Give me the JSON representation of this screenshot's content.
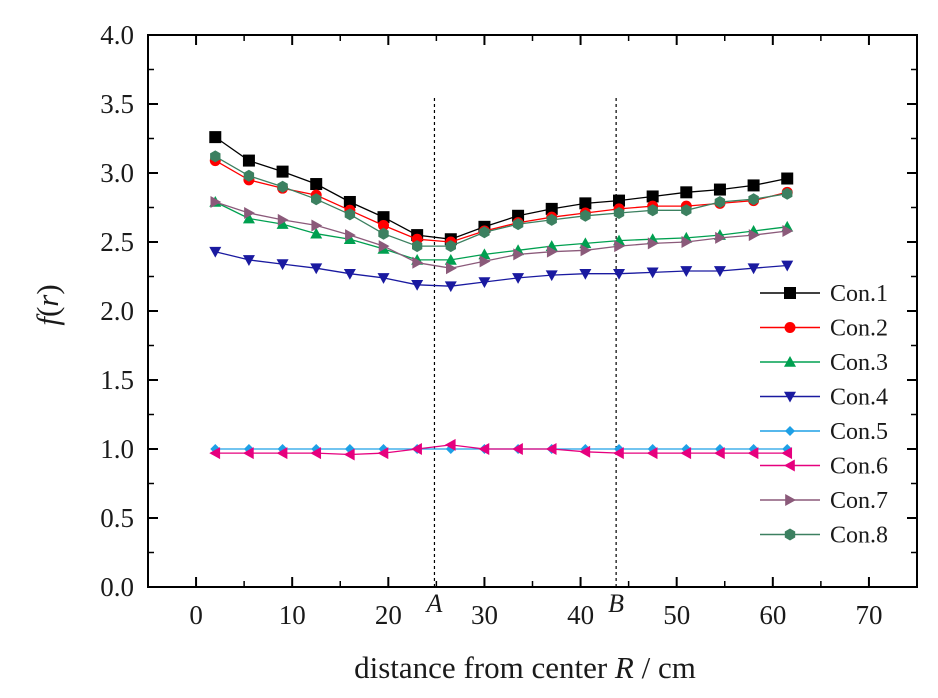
{
  "chart_data": {
    "type": "line",
    "xlabel_prefix": "distance from center ",
    "xlabel_var": "R",
    "xlabel_suffix": " / cm",
    "ylabel_var_f": "f",
    "ylabel_open": "(",
    "ylabel_var_r": "r",
    "ylabel_close": ")",
    "xlim": [
      -5,
      75
    ],
    "ylim": [
      0,
      4
    ],
    "xticks": [
      0,
      10,
      20,
      30,
      40,
      50,
      60,
      70
    ],
    "yticks": [
      0.0,
      0.5,
      1.0,
      1.5,
      2.0,
      2.5,
      3.0,
      3.5,
      4.0
    ],
    "xtick_labels": [
      "0",
      "10",
      "20",
      "30",
      "40",
      "50",
      "60",
      "70"
    ],
    "ytick_labels": [
      "0.0",
      "0.5",
      "1.0",
      "1.5",
      "2.0",
      "2.5",
      "3.0",
      "3.5",
      "4.0"
    ],
    "x": [
      2,
      5.5,
      9,
      12.5,
      16,
      19.5,
      23,
      26.5,
      30,
      33.5,
      37,
      40.5,
      44,
      47.5,
      51,
      54.5,
      58,
      61.5
    ],
    "vlines": [
      {
        "x": 24.8,
        "label": "A"
      },
      {
        "x": 43.7,
        "label": "B"
      }
    ],
    "legend_position": "right",
    "series": [
      {
        "name": "Con.1",
        "color": "#000000",
        "marker": "square",
        "values": [
          3.26,
          3.09,
          3.01,
          2.92,
          2.79,
          2.68,
          2.55,
          2.52,
          2.61,
          2.69,
          2.74,
          2.78,
          2.8,
          2.83,
          2.86,
          2.88,
          2.91,
          2.96
        ]
      },
      {
        "name": "Con.2",
        "color": "#ff0000",
        "marker": "circle",
        "values": [
          3.09,
          2.95,
          2.89,
          2.84,
          2.73,
          2.62,
          2.52,
          2.5,
          2.58,
          2.64,
          2.68,
          2.71,
          2.74,
          2.76,
          2.76,
          2.78,
          2.8,
          2.86
        ]
      },
      {
        "name": "Con.3",
        "color": "#00a050",
        "marker": "triangle-up",
        "values": [
          2.79,
          2.67,
          2.63,
          2.56,
          2.52,
          2.45,
          2.37,
          2.37,
          2.41,
          2.44,
          2.47,
          2.49,
          2.51,
          2.52,
          2.53,
          2.55,
          2.58,
          2.61
        ]
      },
      {
        "name": "Con.4",
        "color": "#1a1aa0",
        "marker": "triangle-down",
        "values": [
          2.43,
          2.37,
          2.34,
          2.31,
          2.27,
          2.24,
          2.19,
          2.18,
          2.21,
          2.24,
          2.26,
          2.27,
          2.27,
          2.28,
          2.29,
          2.29,
          2.31,
          2.33
        ]
      },
      {
        "name": "Con.5",
        "color": "#1ea0e6",
        "marker": "diamond",
        "values": [
          1.0,
          1.0,
          1.0,
          1.0,
          1.0,
          1.0,
          1.0,
          1.0,
          1.0,
          1.0,
          1.0,
          1.0,
          1.0,
          1.0,
          1.0,
          1.0,
          1.0,
          1.0
        ]
      },
      {
        "name": "Con.6",
        "color": "#e6007e",
        "marker": "triangle-left",
        "values": [
          0.97,
          0.97,
          0.97,
          0.97,
          0.96,
          0.97,
          1.0,
          1.03,
          1.0,
          1.0,
          1.0,
          0.98,
          0.97,
          0.97,
          0.97,
          0.97,
          0.97,
          0.97
        ]
      },
      {
        "name": "Con.7",
        "color": "#8b5a7a",
        "marker": "triangle-right",
        "values": [
          2.79,
          2.71,
          2.66,
          2.62,
          2.55,
          2.47,
          2.35,
          2.31,
          2.36,
          2.41,
          2.43,
          2.44,
          2.47,
          2.49,
          2.5,
          2.53,
          2.55,
          2.58
        ]
      },
      {
        "name": "Con.8",
        "color": "#3c8060",
        "marker": "hexagon",
        "values": [
          3.12,
          2.98,
          2.9,
          2.81,
          2.7,
          2.56,
          2.47,
          2.47,
          2.57,
          2.63,
          2.66,
          2.69,
          2.71,
          2.73,
          2.73,
          2.79,
          2.81,
          2.85
        ]
      }
    ]
  }
}
